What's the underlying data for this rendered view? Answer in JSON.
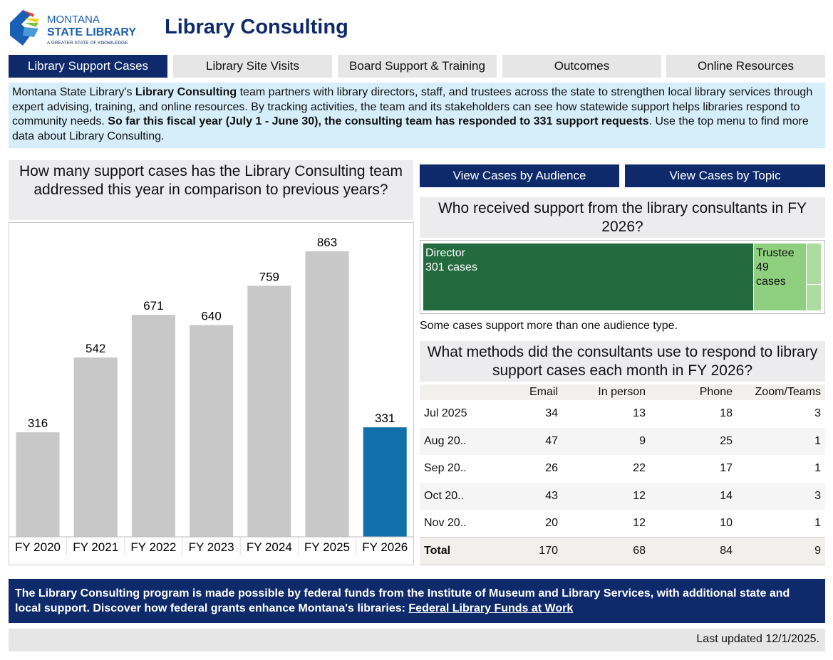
{
  "header": {
    "logo_text": [
      "MONTANA",
      "STATE LIBRARY",
      "A GREATER STATE OF KNOWLEDGE"
    ],
    "title": "Library Consulting"
  },
  "tabs": [
    {
      "label": "Library Support Cases",
      "active": true
    },
    {
      "label": "Library Site Visits"
    },
    {
      "label": "Board Support & Training"
    },
    {
      "label": "Outcomes"
    },
    {
      "label": "Online Resources"
    }
  ],
  "intro": {
    "p1": "Montana State Library's ",
    "b1": "Library Consulting",
    "p2": " team partners with library directors, staff, and trustees across the state to strengthen local library services through expert advising, training, and online resources. By tracking activities, the team and its stakeholders can see how statewide support helps libraries respond to community needs. ",
    "b2": "So far this fiscal year (July 1 - June 30), the consulting team has responded to 331 support requests",
    "p3": ". Use the top menu to find more data about Library Consulting."
  },
  "bar_question": "How many support cases has the Library Consulting team addressed this year in comparison to previous years?",
  "chart_data": {
    "type": "bar",
    "categories": [
      "FY 2020",
      "FY 2021",
      "FY 2022",
      "FY 2023",
      "FY 2024",
      "FY 2025",
      "FY 2026"
    ],
    "values": [
      316,
      542,
      671,
      640,
      759,
      863,
      331
    ],
    "highlight": "FY 2026",
    "colors": {
      "default": "#c8c8c8",
      "highlight": "#1170aa"
    },
    "ylim": [
      0,
      1000
    ],
    "grid": false
  },
  "buttons": {
    "audience": "View Cases by Audience",
    "topic": "View Cases by Topic"
  },
  "audience_question": "Who received support from the library consultants in FY 2026?",
  "treemap": [
    {
      "label": "Director",
      "value": "301 cases",
      "color": "#236b3e"
    },
    {
      "label": "Trustee",
      "value": "49",
      "unit": "cases",
      "color": "#8fd080"
    }
  ],
  "audience_note": "Some cases support more than one audience type.",
  "methods_question": "What methods did the consultants use to respond to library support cases each month in FY 2026?",
  "methods_table": {
    "columns": [
      "",
      "Email",
      "In person",
      "Phone",
      "Zoom/Teams"
    ],
    "rows": [
      [
        "Jul 2025",
        "34",
        "13",
        "18",
        "3"
      ],
      [
        "Aug 20..",
        "47",
        "9",
        "25",
        "1"
      ],
      [
        "Sep 20..",
        "26",
        "22",
        "17",
        "1"
      ],
      [
        "Oct 20..",
        "43",
        "12",
        "14",
        "3"
      ],
      [
        "Nov 20..",
        "20",
        "12",
        "10",
        "1"
      ]
    ],
    "total": [
      "Total",
      "170",
      "68",
      "84",
      "9"
    ]
  },
  "footer": {
    "text": "The Library Consulting program is made possible by federal funds from the Institute of Museum and Library Services, with additional state and local support. Discover how federal grants enhance Montana's libraries: ",
    "link": "Federal Library Funds at Work"
  },
  "updated": "Last updated 12/1/2025."
}
